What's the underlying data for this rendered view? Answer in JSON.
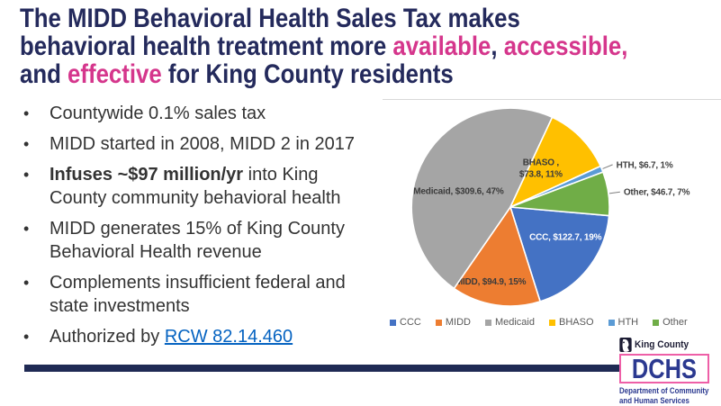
{
  "colors": {
    "title_navy": "#242A5C",
    "accent_pink": "#D5368C",
    "link_blue": "#0563C1",
    "bar_navy": "#1F2A54",
    "brand_navy": "#2B3990",
    "brand_pink": "#EE5FA7",
    "body_text": "#333333"
  },
  "title": {
    "lines": [
      {
        "segments": [
          {
            "text": "The MIDD Behavioral Health Sales Tax makes"
          }
        ]
      },
      {
        "segments": [
          {
            "text": "behavioral health treatment more "
          },
          {
            "text": "available"
          },
          {
            "text": ", "
          },
          {
            "text": "accessible,"
          }
        ]
      },
      {
        "segments": [
          {
            "text": "and "
          },
          {
            "text": "effective"
          },
          {
            "text": " for King County residents"
          }
        ]
      }
    ]
  },
  "bullet_char": "•",
  "bullets": [
    {
      "text": "Countywide 0.1% sales tax"
    },
    {
      "text": "MIDD started in 2008, MIDD 2 in 2017"
    },
    {
      "bold": "Infuses ~$97 million/yr",
      "rest": " into King County community behavioral health"
    },
    {
      "text": "MIDD generates 15% of King County Behavioral Health revenue"
    },
    {
      "text": "Complements insufficient federal and state investments"
    },
    {
      "prefix": "Authorized by ",
      "link": "RCW 82.14.460"
    }
  ],
  "chart_data": {
    "type": "pie",
    "start_angle_deg": 95,
    "legend_position": "bottom",
    "slices": [
      {
        "name": "CCC",
        "value": 122.7,
        "pct": 19,
        "color": "#4472C4",
        "label": "CCC, $122.7, 19%",
        "label_placement": "inside",
        "label_color": "#FFFFFF",
        "label_angle": 118,
        "label_r": 0.63
      },
      {
        "name": "MIDD",
        "value": 94.9,
        "pct": 15,
        "color": "#ED7D31",
        "label": "MIDD, $94.9, 15%",
        "label_placement": "inside",
        "label_color": "#3B3B3B",
        "label_angle": 195,
        "label_r": 0.77
      },
      {
        "name": "Medicaid",
        "value": 309.6,
        "pct": 47,
        "color": "#A5A5A5",
        "label": "Medicaid, $309.6, 47%",
        "label_placement": "inside",
        "label_color": "#3B3B3B",
        "label_angle": 288,
        "label_r": 0.55
      },
      {
        "name": "BHASO",
        "value": 73.8,
        "pct": 11,
        "color": "#FFC000",
        "label": "BHASO ,\n$73.8, 11%",
        "label_placement": "inside",
        "label_color": "#3B3B3B",
        "label_angle": 38,
        "label_r": 0.5
      },
      {
        "name": "HTH",
        "value": 6.7,
        "pct": 1,
        "color": "#5B9BD5",
        "label": "HTH, $6.7, 1%",
        "label_placement": "outside",
        "label_color": "#404040"
      },
      {
        "name": "Other",
        "value": 46.7,
        "pct": 7,
        "color": "#70AD47",
        "label": "Other, $46.7, 7%",
        "label_placement": "outside",
        "label_color": "#404040"
      }
    ],
    "legend": [
      "CCC",
      "MIDD",
      "Medicaid",
      "BHASO",
      "HTH",
      "Other"
    ]
  },
  "logo": {
    "kc_label": "King County",
    "dchs": "DCHS",
    "caption_line1": "Department of Community",
    "caption_line2": "and Human Services"
  }
}
